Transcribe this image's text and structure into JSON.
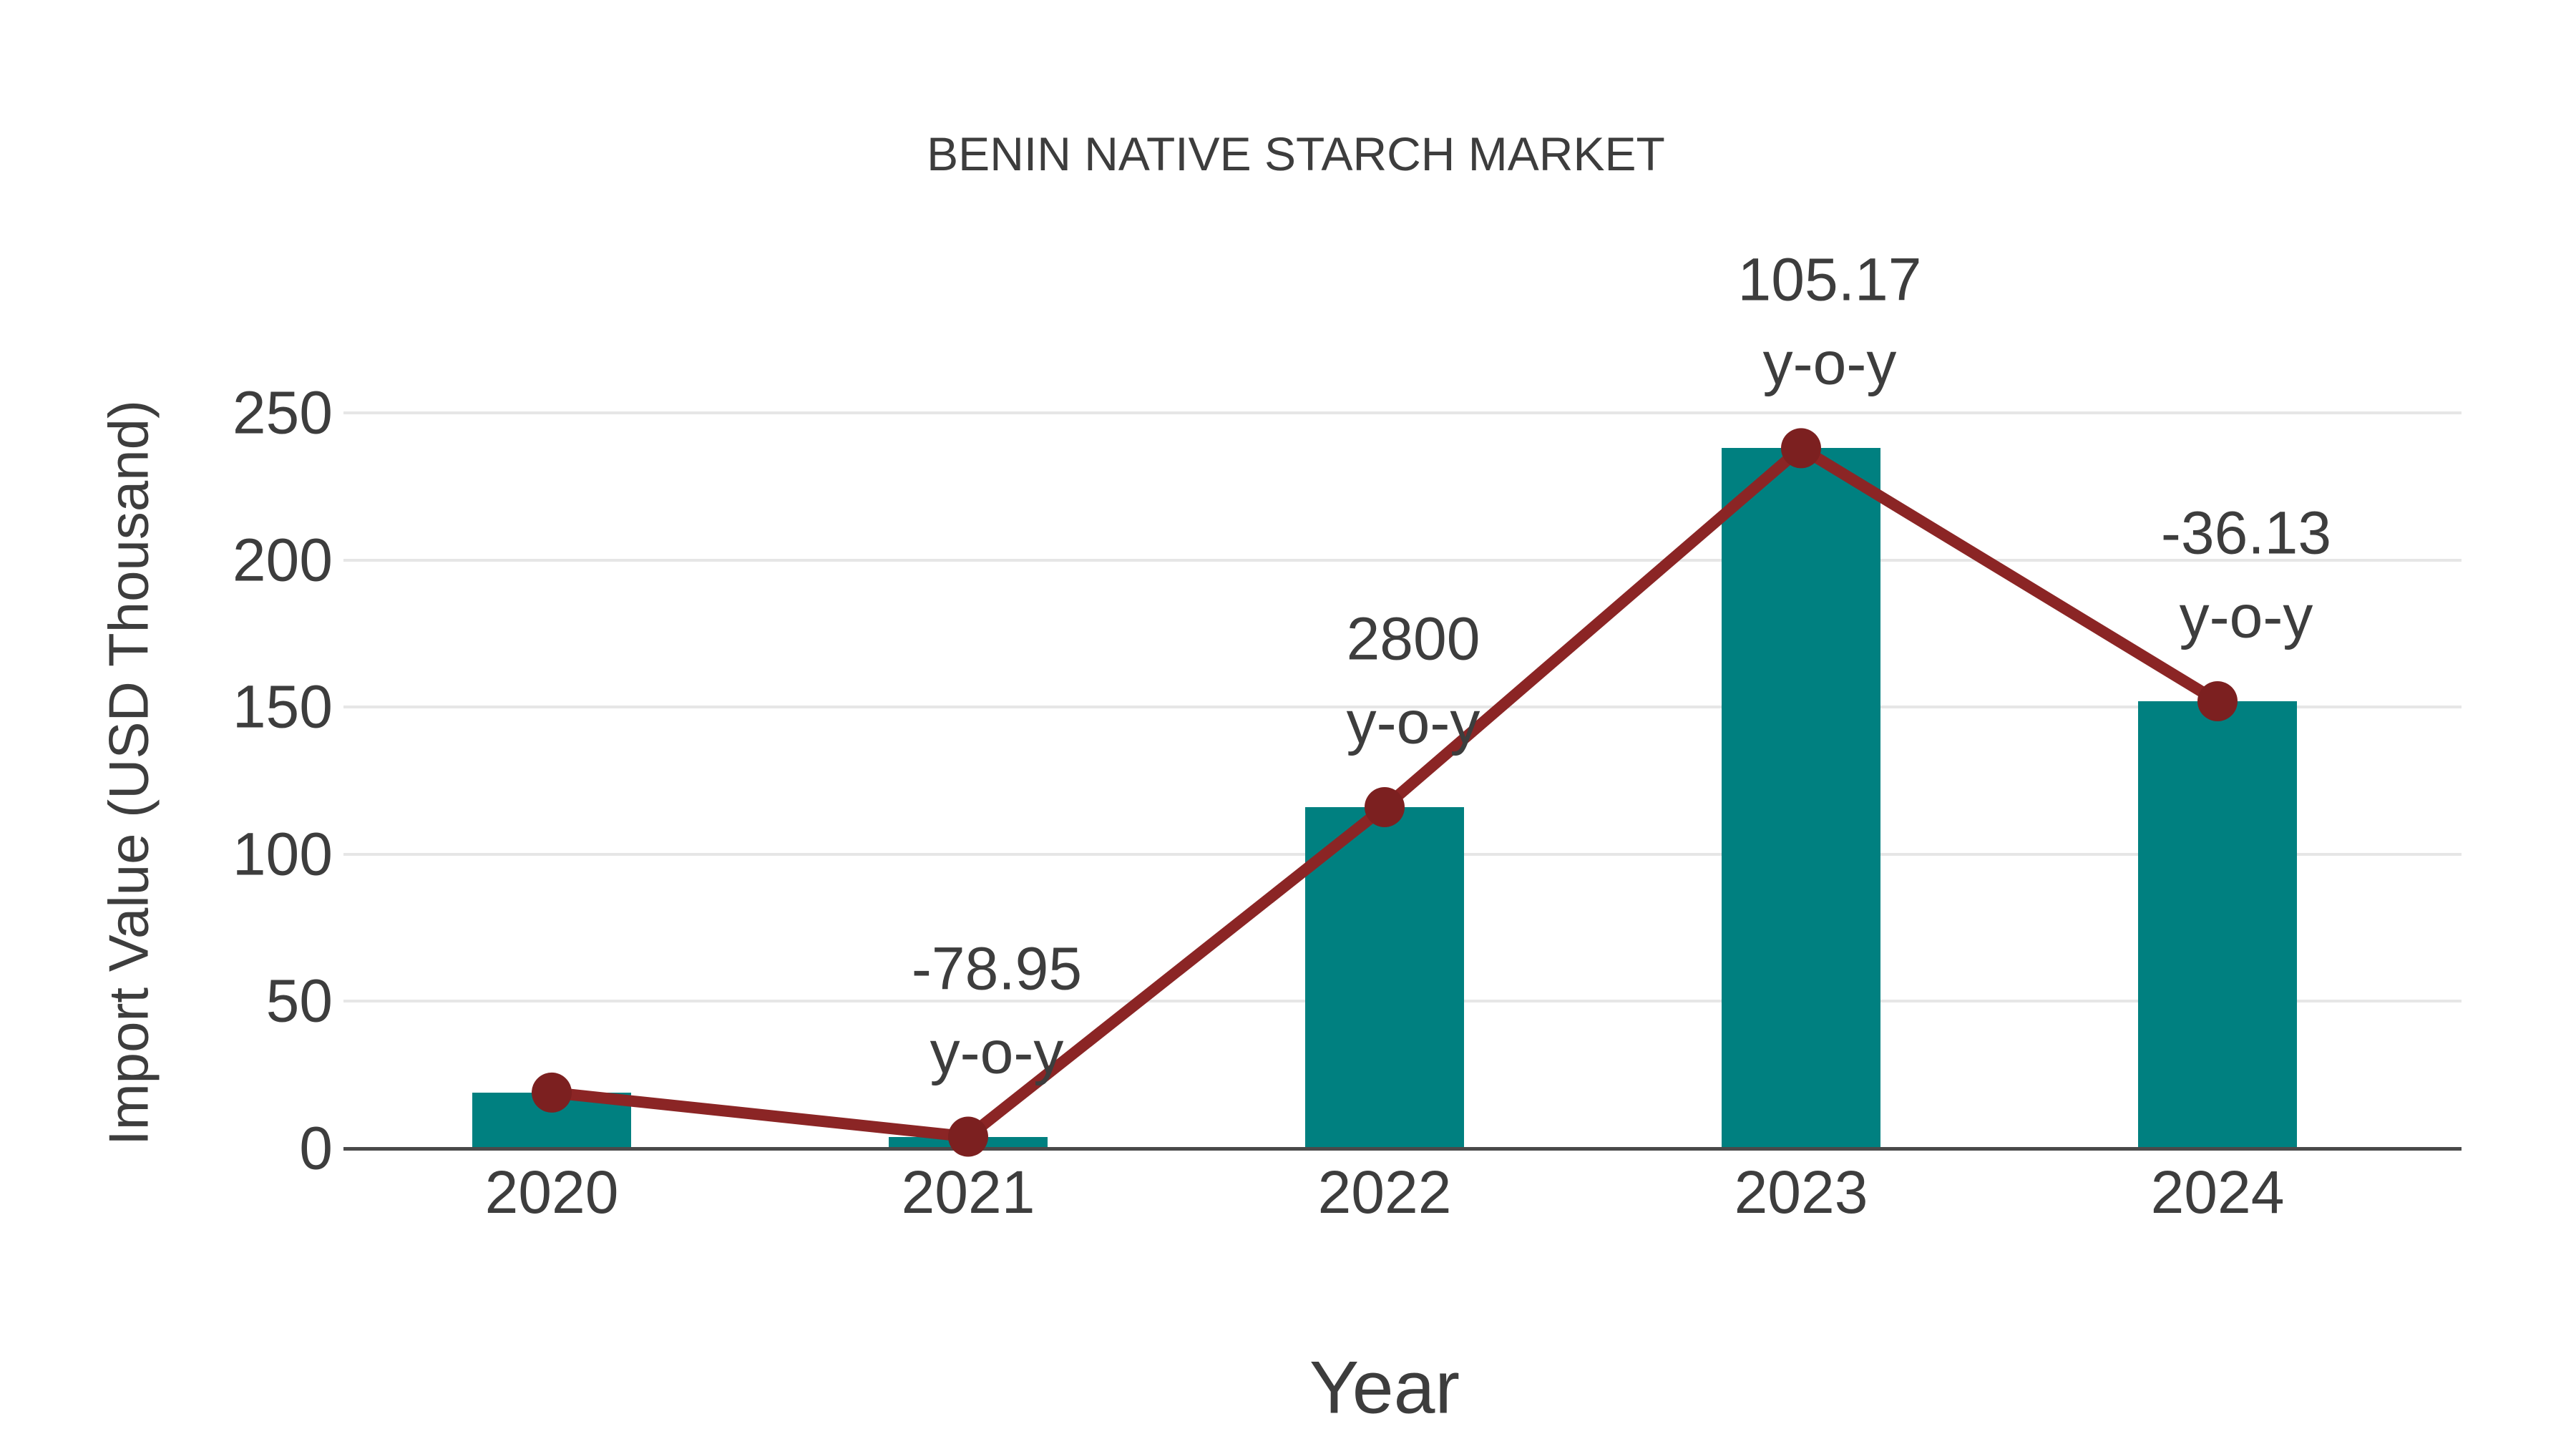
{
  "chart_data": {
    "type": "bar",
    "title": "BENIN NATIVE STARCH MARKET",
    "xlabel": "Year",
    "ylabel": "Import Value (USD Thousand)",
    "categories": [
      "2020",
      "2021",
      "2022",
      "2023",
      "2024"
    ],
    "values": [
      19,
      4,
      116,
      238,
      152
    ],
    "line_overlay": {
      "name": "y-o-y change markers",
      "values": [
        19,
        4,
        116,
        238,
        152
      ]
    },
    "yoy_labels": [
      "",
      "-78.95",
      "2800",
      "105.17",
      "-36.13"
    ],
    "yoy_suffix": "y-o-y",
    "yticks": [
      0,
      50,
      100,
      150,
      200,
      250
    ],
    "ylim": [
      0,
      260
    ],
    "grid": true,
    "legend": "none",
    "colors": {
      "bar": "#008080",
      "line": "#8b2525",
      "marker": "#7c2020",
      "grid": "#e6e6e6",
      "axis": "#4a4a4a",
      "text": "#3d3d3d"
    }
  }
}
